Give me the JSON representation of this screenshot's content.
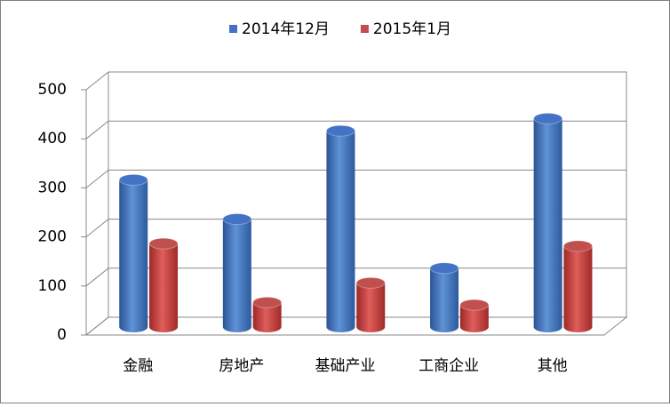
{
  "chart_data": {
    "type": "bar3d",
    "categories": [
      "金融",
      "房地产",
      "基础产业",
      "工商企业",
      "其他"
    ],
    "series": [
      {
        "name": "2014年12月",
        "color": "#4472c4",
        "values": [
          300,
          220,
          400,
          120,
          425
        ]
      },
      {
        "name": "2015年1月",
        "color": "#c0504d",
        "values": [
          170,
          50,
          90,
          45,
          165
        ]
      }
    ],
    "ylim": [
      0,
      500
    ],
    "yticks": [
      0,
      100,
      200,
      300,
      400,
      500
    ],
    "grid": true
  }
}
